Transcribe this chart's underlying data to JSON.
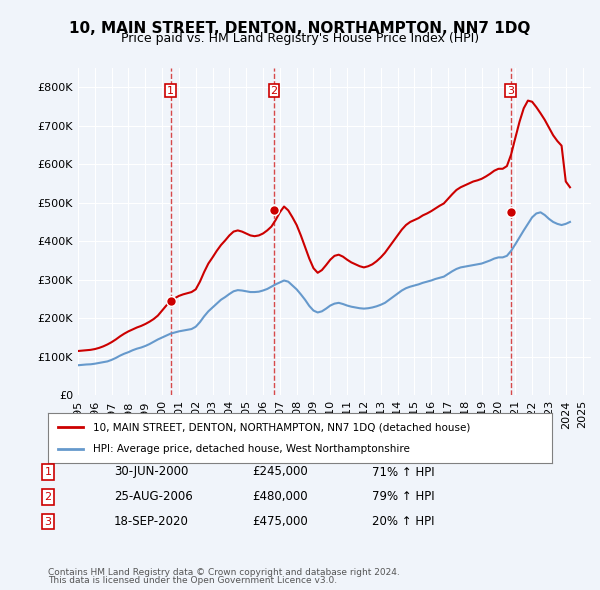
{
  "title": "10, MAIN STREET, DENTON, NORTHAMPTON, NN7 1DQ",
  "subtitle": "Price paid vs. HM Land Registry's House Price Index (HPI)",
  "legend_line1": "10, MAIN STREET, DENTON, NORTHAMPTON, NN7 1DQ (detached house)",
  "legend_line2": "HPI: Average price, detached house, West Northamptonshire",
  "footer1": "Contains HM Land Registry data © Crown copyright and database right 2024.",
  "footer2": "This data is licensed under the Open Government Licence v3.0.",
  "sale_color": "#cc0000",
  "hpi_color": "#6699cc",
  "background_color": "#f0f4fa",
  "ylim": [
    0,
    850000
  ],
  "yticks": [
    0,
    100000,
    200000,
    300000,
    400000,
    500000,
    600000,
    700000,
    800000
  ],
  "sales": [
    {
      "date_num": 2000.5,
      "price": 245000,
      "label": "1"
    },
    {
      "date_num": 2006.65,
      "price": 480000,
      "label": "2"
    },
    {
      "date_num": 2020.72,
      "price": 475000,
      "label": "3"
    }
  ],
  "sale_vlines": [
    2000.5,
    2006.65,
    2020.72
  ],
  "table_rows": [
    {
      "num": "1",
      "date": "30-JUN-2000",
      "price": "£245,000",
      "pct": "71% ↑ HPI"
    },
    {
      "num": "2",
      "date": "25-AUG-2006",
      "price": "£480,000",
      "pct": "79% ↑ HPI"
    },
    {
      "num": "3",
      "date": "18-SEP-2020",
      "price": "£475,000",
      "pct": "20% ↑ HPI"
    }
  ],
  "hpi_data": {
    "dates": [
      1995.0,
      1995.25,
      1995.5,
      1995.75,
      1996.0,
      1996.25,
      1996.5,
      1996.75,
      1997.0,
      1997.25,
      1997.5,
      1997.75,
      1998.0,
      1998.25,
      1998.5,
      1998.75,
      1999.0,
      1999.25,
      1999.5,
      1999.75,
      2000.0,
      2000.25,
      2000.5,
      2000.75,
      2001.0,
      2001.25,
      2001.5,
      2001.75,
      2002.0,
      2002.25,
      2002.5,
      2002.75,
      2003.0,
      2003.25,
      2003.5,
      2003.75,
      2004.0,
      2004.25,
      2004.5,
      2004.75,
      2005.0,
      2005.25,
      2005.5,
      2005.75,
      2006.0,
      2006.25,
      2006.5,
      2006.75,
      2007.0,
      2007.25,
      2007.5,
      2007.75,
      2008.0,
      2008.25,
      2008.5,
      2008.75,
      2009.0,
      2009.25,
      2009.5,
      2009.75,
      2010.0,
      2010.25,
      2010.5,
      2010.75,
      2011.0,
      2011.25,
      2011.5,
      2011.75,
      2012.0,
      2012.25,
      2012.5,
      2012.75,
      2013.0,
      2013.25,
      2013.5,
      2013.75,
      2014.0,
      2014.25,
      2014.5,
      2014.75,
      2015.0,
      2015.25,
      2015.5,
      2015.75,
      2016.0,
      2016.25,
      2016.5,
      2016.75,
      2017.0,
      2017.25,
      2017.5,
      2017.75,
      2018.0,
      2018.25,
      2018.5,
      2018.75,
      2019.0,
      2019.25,
      2019.5,
      2019.75,
      2020.0,
      2020.25,
      2020.5,
      2020.75,
      2021.0,
      2021.25,
      2021.5,
      2021.75,
      2022.0,
      2022.25,
      2022.5,
      2022.75,
      2023.0,
      2023.25,
      2023.5,
      2023.75,
      2024.0,
      2024.25
    ],
    "values": [
      78000,
      79000,
      80000,
      80500,
      82000,
      84000,
      86000,
      88000,
      92000,
      97000,
      103000,
      108000,
      112000,
      117000,
      121000,
      124000,
      128000,
      133000,
      139000,
      145000,
      150000,
      155000,
      160000,
      163000,
      166000,
      168000,
      170000,
      172000,
      178000,
      190000,
      205000,
      218000,
      228000,
      238000,
      248000,
      255000,
      263000,
      270000,
      273000,
      272000,
      270000,
      268000,
      268000,
      269000,
      272000,
      276000,
      282000,
      288000,
      293000,
      298000,
      295000,
      285000,
      275000,
      262000,
      248000,
      232000,
      220000,
      215000,
      218000,
      225000,
      233000,
      238000,
      240000,
      237000,
      233000,
      230000,
      228000,
      226000,
      225000,
      226000,
      228000,
      231000,
      235000,
      240000,
      248000,
      256000,
      264000,
      272000,
      278000,
      282000,
      285000,
      288000,
      292000,
      295000,
      298000,
      302000,
      305000,
      308000,
      315000,
      322000,
      328000,
      332000,
      334000,
      336000,
      338000,
      340000,
      342000,
      346000,
      350000,
      355000,
      358000,
      358000,
      362000,
      375000,
      392000,
      410000,
      428000,
      445000,
      462000,
      472000,
      475000,
      468000,
      458000,
      450000,
      445000,
      442000,
      445000,
      450000
    ]
  },
  "sale_line_data": {
    "dates": [
      1995.0,
      1995.25,
      1995.5,
      1995.75,
      1996.0,
      1996.25,
      1996.5,
      1996.75,
      1997.0,
      1997.25,
      1997.5,
      1997.75,
      1998.0,
      1998.25,
      1998.5,
      1998.75,
      1999.0,
      1999.25,
      1999.5,
      1999.75,
      2000.0,
      2000.25,
      2000.5,
      2000.75,
      2001.0,
      2001.25,
      2001.5,
      2001.75,
      2002.0,
      2002.25,
      2002.5,
      2002.75,
      2003.0,
      2003.25,
      2003.5,
      2003.75,
      2004.0,
      2004.25,
      2004.5,
      2004.75,
      2005.0,
      2005.25,
      2005.5,
      2005.75,
      2006.0,
      2006.25,
      2006.5,
      2006.75,
      2007.0,
      2007.25,
      2007.5,
      2007.75,
      2008.0,
      2008.25,
      2008.5,
      2008.75,
      2009.0,
      2009.25,
      2009.5,
      2009.75,
      2010.0,
      2010.25,
      2010.5,
      2010.75,
      2011.0,
      2011.25,
      2011.5,
      2011.75,
      2012.0,
      2012.25,
      2012.5,
      2012.75,
      2013.0,
      2013.25,
      2013.5,
      2013.75,
      2014.0,
      2014.25,
      2014.5,
      2014.75,
      2015.0,
      2015.25,
      2015.5,
      2015.75,
      2016.0,
      2016.25,
      2016.5,
      2016.75,
      2017.0,
      2017.25,
      2017.5,
      2017.75,
      2018.0,
      2018.25,
      2018.5,
      2018.75,
      2019.0,
      2019.25,
      2019.5,
      2019.75,
      2020.0,
      2020.25,
      2020.5,
      2020.75,
      2021.0,
      2021.25,
      2021.5,
      2021.75,
      2022.0,
      2022.25,
      2022.5,
      2022.75,
      2023.0,
      2023.25,
      2023.5,
      2023.75,
      2024.0,
      2024.25
    ],
    "values": [
      115000,
      116000,
      117000,
      118000,
      120000,
      123000,
      127000,
      132000,
      138000,
      145000,
      153000,
      160000,
      166000,
      171000,
      176000,
      180000,
      185000,
      191000,
      198000,
      207000,
      220000,
      233000,
      245000,
      252000,
      258000,
      262000,
      265000,
      268000,
      275000,
      295000,
      320000,
      342000,
      358000,
      375000,
      390000,
      402000,
      415000,
      425000,
      428000,
      425000,
      420000,
      415000,
      413000,
      415000,
      420000,
      428000,
      438000,
      455000,
      475000,
      490000,
      480000,
      462000,
      442000,
      415000,
      385000,
      355000,
      330000,
      318000,
      325000,
      338000,
      352000,
      362000,
      365000,
      360000,
      352000,
      345000,
      340000,
      335000,
      332000,
      335000,
      340000,
      348000,
      358000,
      370000,
      385000,
      400000,
      415000,
      430000,
      442000,
      450000,
      455000,
      460000,
      467000,
      472000,
      478000,
      485000,
      492000,
      498000,
      510000,
      522000,
      533000,
      540000,
      545000,
      550000,
      555000,
      558000,
      562000,
      568000,
      575000,
      583000,
      588000,
      588000,
      595000,
      625000,
      668000,
      710000,
      745000,
      765000,
      762000,
      748000,
      732000,
      715000,
      695000,
      675000,
      660000,
      648000,
      555000,
      540000
    ]
  }
}
